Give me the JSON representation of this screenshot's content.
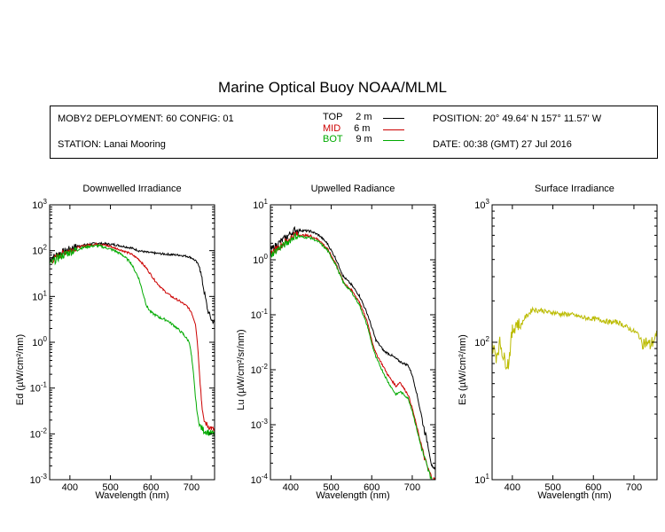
{
  "title": "Marine Optical Buoy NOAA/MLML",
  "info": {
    "deployment": "MOBY2 DEPLOYMENT: 60 CONFIG: 01",
    "station": "STATION: Lanai Mooring",
    "position": "POSITION: 20° 49.64' N   157° 11.57' W",
    "date": "DATE: 00:38 (GMT) 27 Jul 2016"
  },
  "legend": [
    {
      "name": "TOP",
      "depth": "2",
      "unit": "m",
      "color": "#000000"
    },
    {
      "name": "MID",
      "depth": "6",
      "unit": "m",
      "color": "#cc0000"
    },
    {
      "name": "BOT",
      "depth": "9",
      "unit": "m",
      "color": "#00aa00"
    }
  ],
  "chart_data": [
    {
      "type": "line",
      "title": "Downwelled Irradiance",
      "xlabel": "Wavelength (nm)",
      "ylabel": "Ed  (µW/cm²/nm)",
      "yscale": "log",
      "xlim": [
        350,
        757
      ],
      "ylim": [
        0.001,
        1000
      ],
      "xticks": [
        400,
        500,
        600,
        700
      ],
      "yticks": [
        {
          "v": 0.001,
          "b": "10",
          "e": "-3"
        },
        {
          "v": 0.01,
          "b": "10",
          "e": "-2"
        },
        {
          "v": 0.1,
          "b": "10",
          "e": "-1"
        },
        {
          "v": 1,
          "b": "10",
          "e": "0"
        },
        {
          "v": 10,
          "b": "10",
          "e": "1"
        },
        {
          "v": 100,
          "b": "10",
          "e": "2"
        },
        {
          "v": 1000,
          "b": "10",
          "e": "3"
        }
      ],
      "series": [
        {
          "name": "TOP",
          "color": "#000000",
          "noise": 0.09,
          "x": [
            350,
            370,
            390,
            410,
            430,
            450,
            470,
            490,
            510,
            530,
            550,
            570,
            590,
            610,
            630,
            650,
            670,
            690,
            700,
            710,
            720,
            730,
            740,
            750,
            757
          ],
          "y": [
            65,
            85,
            100,
            120,
            130,
            140,
            145,
            140,
            135,
            125,
            115,
            100,
            92,
            88,
            85,
            82,
            80,
            75,
            70,
            60,
            45,
            15,
            5,
            3,
            2.8
          ]
        },
        {
          "name": "MID",
          "color": "#cc0000",
          "noise": 0.09,
          "x": [
            350,
            370,
            390,
            410,
            430,
            450,
            470,
            490,
            510,
            530,
            550,
            570,
            590,
            610,
            630,
            650,
            670,
            690,
            700,
            710,
            715,
            720,
            725,
            730,
            740,
            750,
            757
          ],
          "y": [
            55,
            75,
            95,
            110,
            125,
            135,
            140,
            130,
            115,
            100,
            85,
            65,
            40,
            22,
            14,
            10,
            8,
            6,
            4.5,
            2.5,
            0.9,
            0.2,
            0.05,
            0.02,
            0.015,
            0.013,
            0.012
          ]
        },
        {
          "name": "BOT",
          "color": "#00aa00",
          "noise": 0.11,
          "x": [
            350,
            370,
            390,
            410,
            430,
            450,
            470,
            490,
            510,
            530,
            550,
            570,
            580,
            590,
            600,
            620,
            640,
            660,
            680,
            695,
            700,
            705,
            710,
            715,
            720,
            730,
            740,
            750,
            757
          ],
          "y": [
            50,
            70,
            85,
            100,
            115,
            125,
            128,
            115,
            100,
            80,
            55,
            25,
            12,
            6,
            4.5,
            3.5,
            3,
            2.2,
            1.5,
            1,
            0.5,
            0.2,
            0.06,
            0.025,
            0.015,
            0.012,
            0.011,
            0.01,
            0.01
          ]
        }
      ]
    },
    {
      "type": "line",
      "title": "Upwelled Radiance",
      "xlabel": "Wavelength (nm)",
      "ylabel": "Lu  (µW/cm²/sr/nm)",
      "yscale": "log",
      "xlim": [
        350,
        757
      ],
      "ylim": [
        0.0001,
        10
      ],
      "xticks": [
        400,
        500,
        600,
        700
      ],
      "yticks": [
        {
          "v": 0.0001,
          "b": "10",
          "e": "-4"
        },
        {
          "v": 0.001,
          "b": "10",
          "e": "-3"
        },
        {
          "v": 0.01,
          "b": "10",
          "e": "-2"
        },
        {
          "v": 0.1,
          "b": "10",
          "e": "-1"
        },
        {
          "v": 1,
          "b": "10",
          "e": "0"
        },
        {
          "v": 10,
          "b": "10",
          "e": "1"
        }
      ],
      "series": [
        {
          "name": "TOP",
          "color": "#000000",
          "noise": 0.08,
          "x": [
            350,
            370,
            390,
            410,
            430,
            450,
            470,
            490,
            510,
            530,
            550,
            570,
            590,
            610,
            630,
            650,
            670,
            690,
            700,
            710,
            720,
            730,
            740,
            750,
            757
          ],
          "y": [
            1.5,
            2,
            2.6,
            3.5,
            3.4,
            3.3,
            2.8,
            2,
            1.1,
            0.5,
            0.35,
            0.22,
            0.1,
            0.035,
            0.022,
            0.018,
            0.014,
            0.012,
            0.008,
            0.004,
            0.0018,
            0.0008,
            0.0004,
            0.00015,
            0.00015
          ]
        },
        {
          "name": "MID",
          "color": "#cc0000",
          "noise": 0.08,
          "x": [
            350,
            370,
            390,
            410,
            430,
            450,
            470,
            490,
            510,
            530,
            550,
            570,
            590,
            600,
            610,
            620,
            640,
            660,
            670,
            680,
            690,
            700,
            710,
            720,
            730,
            740,
            750,
            757
          ],
          "y": [
            1.3,
            1.7,
            2.2,
            2.9,
            2.8,
            2.7,
            2.3,
            1.6,
            0.9,
            0.4,
            0.28,
            0.17,
            0.07,
            0.035,
            0.02,
            0.015,
            0.008,
            0.005,
            0.006,
            0.0045,
            0.0035,
            0.002,
            0.001,
            0.0005,
            0.00025,
            0.00015,
            0.0001,
            0.0001
          ]
        },
        {
          "name": "BOT",
          "color": "#00aa00",
          "noise": 0.08,
          "x": [
            350,
            370,
            390,
            410,
            430,
            450,
            470,
            490,
            510,
            530,
            550,
            570,
            590,
            600,
            610,
            620,
            640,
            660,
            670,
            680,
            690,
            700,
            710,
            720,
            730,
            740,
            750
          ],
          "y": [
            1.2,
            1.6,
            2,
            2.7,
            2.6,
            2.5,
            2.1,
            1.5,
            0.85,
            0.38,
            0.26,
            0.15,
            0.06,
            0.03,
            0.017,
            0.012,
            0.006,
            0.0035,
            0.004,
            0.0035,
            0.003,
            0.0018,
            0.0009,
            0.00045,
            0.00025,
            0.00014,
            0.0001
          ]
        }
      ]
    },
    {
      "type": "line",
      "title": "Surface Irradiance",
      "xlabel": "Wavelength (nm)",
      "ylabel": "Es  (µW/cm²/nm)",
      "yscale": "log",
      "xlim": [
        350,
        757
      ],
      "ylim": [
        10,
        1000
      ],
      "xticks": [
        400,
        500,
        600,
        700
      ],
      "yticks": [
        {
          "v": 10,
          "b": "10",
          "e": "1"
        },
        {
          "v": 100,
          "b": "10",
          "e": "2"
        },
        {
          "v": 1000,
          "b": "10",
          "e": "3"
        }
      ],
      "series": [
        {
          "name": "Es",
          "color": "#bbbb00",
          "noise": 0.07,
          "x": [
            350,
            360,
            370,
            380,
            390,
            400,
            410,
            420,
            430,
            440,
            450,
            460,
            470,
            480,
            490,
            500,
            520,
            540,
            560,
            580,
            600,
            620,
            640,
            660,
            680,
            700,
            710,
            720,
            730,
            740,
            750,
            757
          ],
          "y": [
            95,
            80,
            100,
            75,
            70,
            120,
            140,
            130,
            150,
            160,
            175,
            170,
            172,
            168,
            165,
            165,
            160,
            160,
            155,
            150,
            148,
            145,
            140,
            140,
            130,
            120,
            115,
            100,
            100,
            95,
            105,
            110
          ]
        }
      ]
    }
  ]
}
